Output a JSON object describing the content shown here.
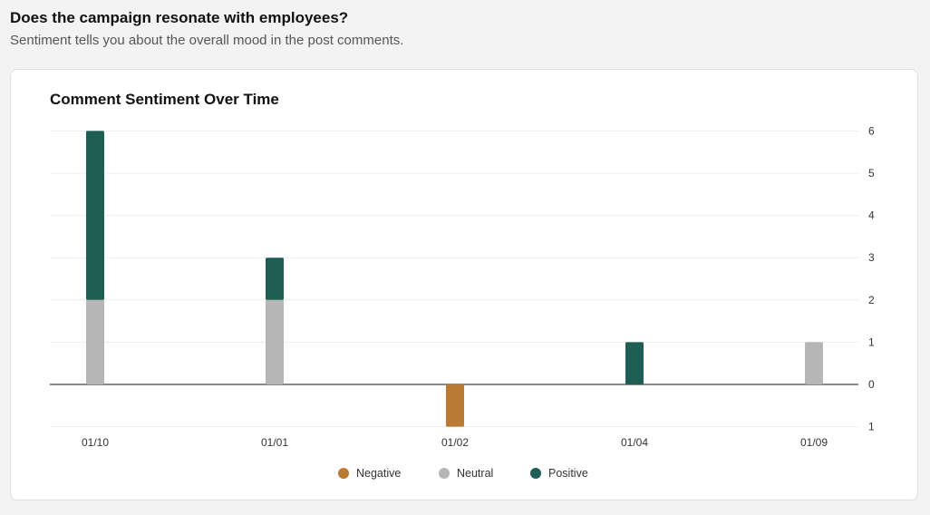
{
  "header": {
    "title": "Does the campaign resonate with employees?",
    "subtitle": "Sentiment tells you about the overall mood in the post comments."
  },
  "colors": {
    "negative": "#b97a35",
    "neutral": "#b6b6b6",
    "positive": "#1f5e54"
  },
  "chart_data": {
    "type": "bar",
    "stacked": true,
    "title": "Comment Sentiment Over Time",
    "categories": [
      "01/10",
      "01/01",
      "01/02",
      "01/04",
      "01/09"
    ],
    "series": [
      {
        "name": "Negative",
        "color": "#b97a35",
        "values": [
          0,
          0,
          -1,
          0,
          0
        ]
      },
      {
        "name": "Neutral",
        "color": "#b6b6b6",
        "values": [
          2,
          2,
          0,
          0,
          1
        ]
      },
      {
        "name": "Positive",
        "color": "#1f5e54",
        "values": [
          4,
          1,
          0,
          1,
          0
        ]
      }
    ],
    "ylim": [
      -1,
      6
    ],
    "yticks": [
      6,
      5,
      4,
      3,
      2,
      1,
      0,
      -1
    ],
    "ytick_labels": [
      "6",
      "5",
      "4",
      "3",
      "2",
      "1",
      "0",
      "1"
    ],
    "y_axis_position": "right",
    "grid": true,
    "legend_position": "bottom"
  }
}
